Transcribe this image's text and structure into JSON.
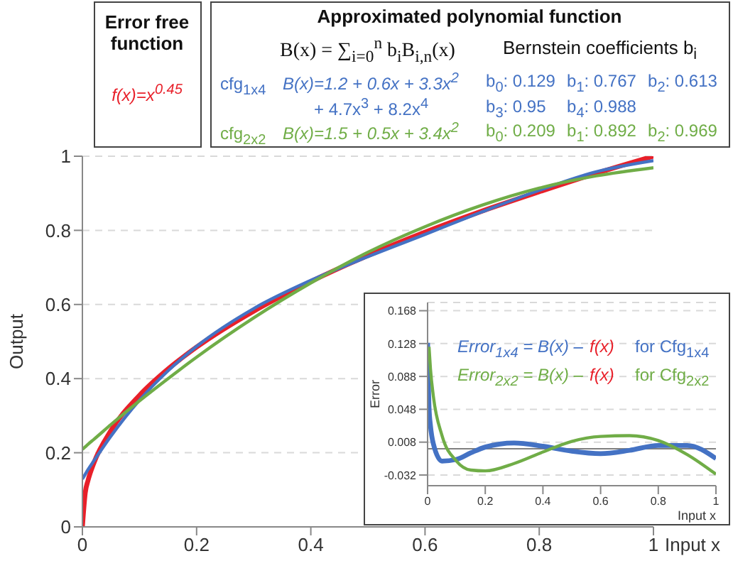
{
  "chart_data": [
    {
      "type": "line",
      "xlabel": "Input x",
      "ylabel": "Output",
      "x": [
        0,
        0.005,
        0.01,
        0.02,
        0.05,
        0.1,
        0.15,
        0.2,
        0.3,
        0.4,
        0.5,
        0.6,
        0.7,
        0.8,
        0.9,
        1
      ],
      "series": [
        {
          "color": "#e8202a",
          "values": [
            0,
            0.092,
            0.126,
            0.172,
            0.26,
            0.355,
            0.426,
            0.485,
            0.582,
            0.662,
            0.732,
            0.795,
            0.852,
            0.904,
            0.954,
            1
          ]
        },
        {
          "color": "#4472c4",
          "values": [
            0.129,
            0.142,
            0.155,
            0.178,
            0.245,
            0.342,
            0.421,
            0.487,
            0.589,
            0.665,
            0.729,
            0.789,
            0.85,
            0.908,
            0.958,
            0.988
          ]
        },
        {
          "color": "#70ad47",
          "values": [
            0.209,
            0.216,
            0.223,
            0.236,
            0.276,
            0.34,
            0.4,
            0.458,
            0.564,
            0.658,
            0.741,
            0.81,
            0.868,
            0.914,
            0.947,
            0.969
          ]
        }
      ],
      "xlim": [
        0,
        1
      ],
      "xticks": [
        0,
        0.2,
        0.4,
        0.6,
        0.8,
        1
      ],
      "ylim": [
        0,
        1
      ],
      "yticks": [
        0,
        0.2,
        0.4,
        0.6,
        0.8,
        1
      ],
      "grid": "y",
      "marker": "none",
      "line_style": "solid",
      "annotations": [
        "Error free function",
        "f(x)=x$^{0.45}$",
        "Approximated polynomial function",
        "B(x) = ∑$_{i=0}$$^{n}$ b$_{i}$B$_{i,n}$(x)",
        "Bernstein coefficients b$_{i}$",
        "cfg$_{1x4}$",
        "B(x)=1.2 + 0.6x + 3.3x$^{2}$",
        "+ 4.7x$^{3}$ + 8.2x$^{4}$",
        "b$_{0}$: 0.129",
        "b$_{1}$: 0.767",
        "b$_{2}$: 0.613",
        "b$_{3}$: 0.95",
        "b$_{4}$: 0.988",
        "cfg$_{2x2}$",
        "B(x)=1.5 + 0.5x + 3.4x$^{2}$",
        "b$_{0}$: 0.209",
        "b$_{1}$: 0.892",
        "b$_{2}$: 0.969"
      ]
    },
    {
      "type": "line",
      "xlabel": "Input x",
      "ylabel": "Error",
      "x": [
        0,
        0.005,
        0.01,
        0.02,
        0.05,
        0.1,
        0.15,
        0.2,
        0.3,
        0.4,
        0.5,
        0.6,
        0.7,
        0.8,
        0.9,
        1
      ],
      "series": [
        {
          "color": "#4472c4",
          "values": [
            0.129,
            0.05,
            0.028,
            0.006,
            -0.015,
            -0.013,
            -0.005,
            0.002,
            0.007,
            0.003,
            -0.003,
            -0.006,
            -0.002,
            0.004,
            0.004,
            -0.012
          ]
        },
        {
          "color": "#70ad47",
          "values": [
            null,
            0.124,
            0.097,
            0.064,
            0.016,
            -0.015,
            -0.026,
            -0.027,
            -0.018,
            -0.004,
            0.009,
            0.015,
            0.016,
            0.01,
            -0.007,
            -0.031
          ]
        }
      ],
      "xlim": [
        0,
        1
      ],
      "xticks": [
        0,
        0.2,
        0.4,
        0.6,
        0.8,
        1
      ],
      "ylim": [
        -0.045,
        0.178
      ],
      "yticks": [
        -0.032,
        0.008,
        0.048,
        0.088,
        0.128,
        0.168
      ],
      "grid": "y",
      "marker": "none",
      "line_style": "solid",
      "ref_lines": [
        {
          "axis": "y",
          "value": 0,
          "color": "#808080"
        }
      ],
      "annotations": [
        "Error$_{1x4}$ = B(x) –",
        "f(x)",
        "for Cfg$_{1x4}$",
        "Error$_{2x2}$ = B(x) –",
        "f(x)",
        "for Cfg$_{2x2}$"
      ]
    }
  ]
}
